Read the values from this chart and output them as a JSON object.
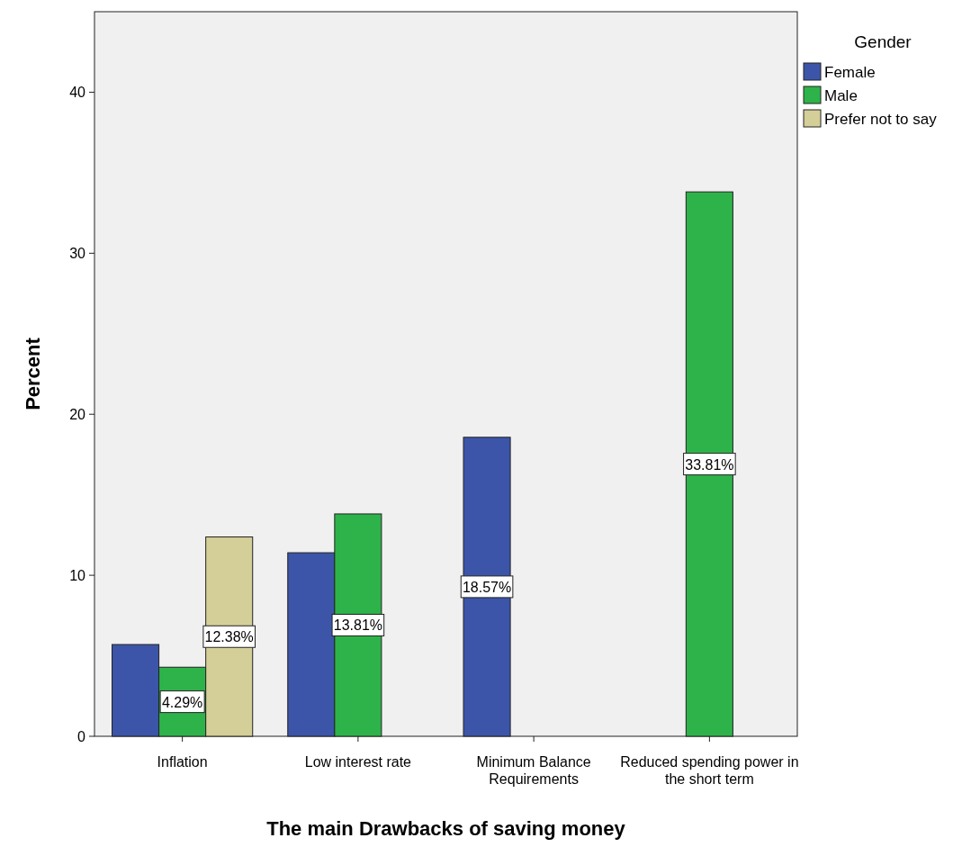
{
  "chart_data": {
    "type": "bar",
    "xlabel": "The main Drawbacks of saving money",
    "ylabel": "Percent",
    "legend_title": "Gender",
    "categories": [
      "Inflation",
      "Low interest rate",
      "Minimum Balance Requirements",
      "Reduced spending power in the short term"
    ],
    "series": [
      {
        "name": "Female",
        "color": "#3c55a8",
        "values": [
          5.7,
          11.4,
          18.57,
          null
        ],
        "value_labels": [
          null,
          null,
          "18.57%",
          null
        ]
      },
      {
        "name": "Male",
        "color": "#2eb34a",
        "values": [
          4.29,
          13.81,
          null,
          33.81
        ],
        "value_labels": [
          "4.29%",
          "13.81%",
          null,
          "33.81%"
        ]
      },
      {
        "name": "Prefer not to say",
        "color": "#d4cf98",
        "values": [
          12.38,
          null,
          null,
          null
        ],
        "value_labels": [
          "12.38%",
          null,
          null,
          null
        ]
      }
    ],
    "ylim": [
      0,
      45
    ],
    "yticks": [
      0,
      10,
      20,
      30,
      40
    ],
    "grid": false,
    "legend": "right"
  }
}
